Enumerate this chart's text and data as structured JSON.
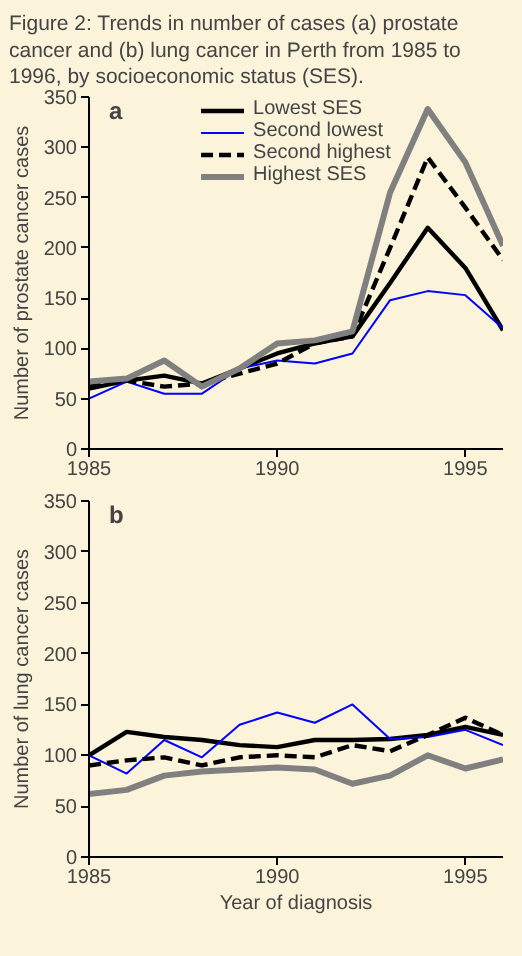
{
  "chart_data": [
    {
      "type": "line",
      "title": "Figure 2: Trends in number of cases (a) prostate cancer and (b) lung cancer in Perth from 1985 to 1996, by socioeconomic status (SES).",
      "ylabel": "Number of prostate cancer cases",
      "annotations": [
        "a"
      ],
      "x": [
        1985,
        1986,
        1987,
        1988,
        1989,
        1990,
        1991,
        1992,
        1993,
        1994,
        1995,
        1996
      ],
      "xlim": [
        1985,
        1996
      ],
      "xticks": [
        1985,
        1990,
        1995
      ],
      "ylim": [
        0,
        350
      ],
      "yticks": [
        0,
        50,
        100,
        150,
        200,
        250,
        300,
        350
      ],
      "grid": false,
      "legend": "top",
      "marker": "none",
      "series": [
        {
          "name": "Lowest SES",
          "color": "#000000",
          "line_style": "solid",
          "values": [
            60,
            68,
            73,
            65,
            80,
            95,
            105,
            112,
            165,
            220,
            180,
            118
          ]
        },
        {
          "name": "Second lowest",
          "color": "#0000ff",
          "line_style": "solid",
          "values": [
            50,
            67,
            55,
            55,
            80,
            88,
            85,
            95,
            148,
            157,
            153,
            120
          ]
        },
        {
          "name": "Second highest",
          "color": "#000000",
          "line_style": "dashed",
          "values": [
            62,
            68,
            62,
            65,
            75,
            85,
            105,
            112,
            200,
            290,
            240,
            188
          ]
        },
        {
          "name": "Highest SES",
          "color": "#808080",
          "line_style": "solid",
          "values": [
            67,
            70,
            88,
            62,
            80,
            105,
            108,
            117,
            255,
            338,
            285,
            202
          ]
        }
      ]
    },
    {
      "type": "line",
      "xlabel": "Year of diagnosis",
      "ylabel": "Number of lung cancer cases",
      "annotations": [
        "b"
      ],
      "x": [
        1985,
        1986,
        1987,
        1988,
        1989,
        1990,
        1991,
        1992,
        1993,
        1994,
        1995,
        1996
      ],
      "xlim": [
        1985,
        1996
      ],
      "xticks": [
        1985,
        1990,
        1995
      ],
      "ylim": [
        0,
        350
      ],
      "yticks": [
        0,
        50,
        100,
        150,
        200,
        250,
        300,
        350
      ],
      "grid": false,
      "legend": false,
      "marker": "none",
      "series": [
        {
          "color": "#000000",
          "line_style": "solid",
          "values": [
            100,
            123,
            118,
            115,
            110,
            108,
            115,
            115,
            116,
            120,
            128,
            120
          ]
        },
        {
          "color": "#0000ff",
          "line_style": "solid",
          "values": [
            100,
            82,
            115,
            98,
            130,
            142,
            132,
            150,
            116,
            118,
            125,
            110
          ]
        },
        {
          "color": "#000000",
          "line_style": "dashed",
          "values": [
            90,
            95,
            98,
            90,
            98,
            100,
            98,
            110,
            104,
            120,
            137,
            120
          ]
        },
        {
          "color": "#808080",
          "line_style": "solid",
          "values": [
            62,
            66,
            80,
            84,
            86,
            88,
            86,
            72,
            80,
            100,
            87,
            96
          ]
        }
      ]
    }
  ]
}
